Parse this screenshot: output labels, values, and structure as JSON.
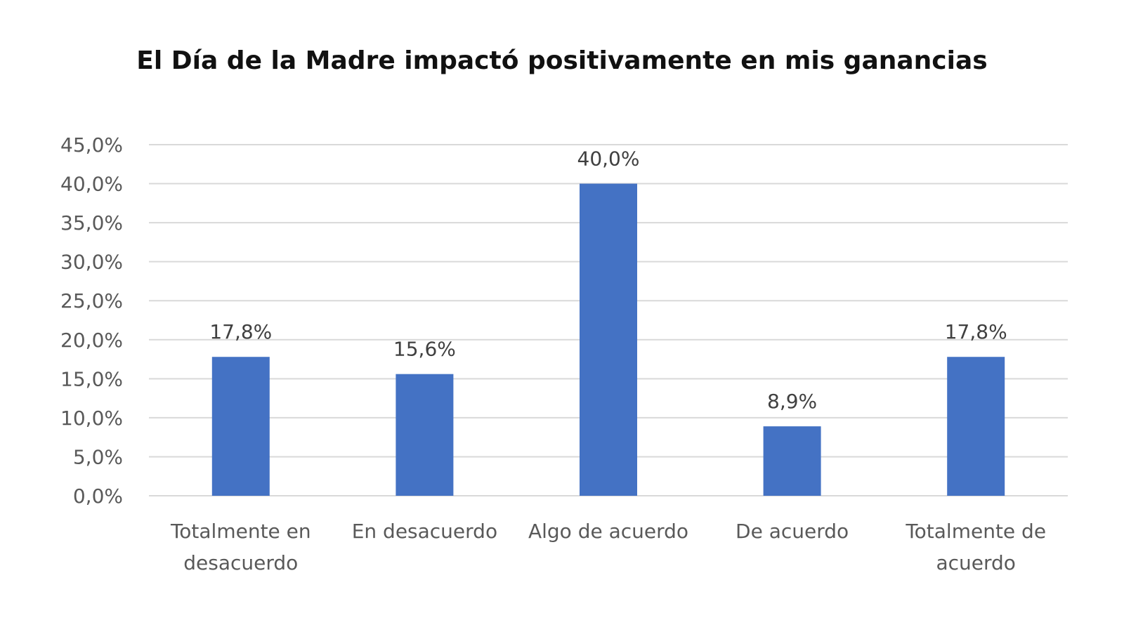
{
  "chart_data": {
    "type": "bar",
    "title": "El Día de la Madre impactó positivamente en mis ganancias",
    "xlabel": "",
    "ylabel": "",
    "categories": [
      "Totalmente en desacuerdo",
      "En desacuerdo",
      "Algo de acuerdo",
      "De acuerdo",
      "Totalmente de acuerdo"
    ],
    "category_lines": [
      [
        "Totalmente en",
        "desacuerdo"
      ],
      [
        "En desacuerdo"
      ],
      [
        "Algo de acuerdo"
      ],
      [
        "De acuerdo"
      ],
      [
        "Totalmente de",
        "acuerdo"
      ]
    ],
    "values": [
      17.8,
      15.6,
      40.0,
      8.9,
      17.8
    ],
    "data_labels": [
      "17,8%",
      "15,6%",
      "40,0%",
      "8,9%",
      "17,8%"
    ],
    "ylim": [
      0,
      45
    ],
    "yticks": [
      0,
      5,
      10,
      15,
      20,
      25,
      30,
      35,
      40,
      45
    ],
    "ytick_labels": [
      "0,0%",
      "5,0%",
      "10,0%",
      "15,0%",
      "20,0%",
      "25,0%",
      "30,0%",
      "35,0%",
      "40,0%",
      "45,0%"
    ],
    "grid": true,
    "legend": "none",
    "colors": {
      "bar": "#4472C4",
      "grid": "#D9D9D9"
    }
  }
}
